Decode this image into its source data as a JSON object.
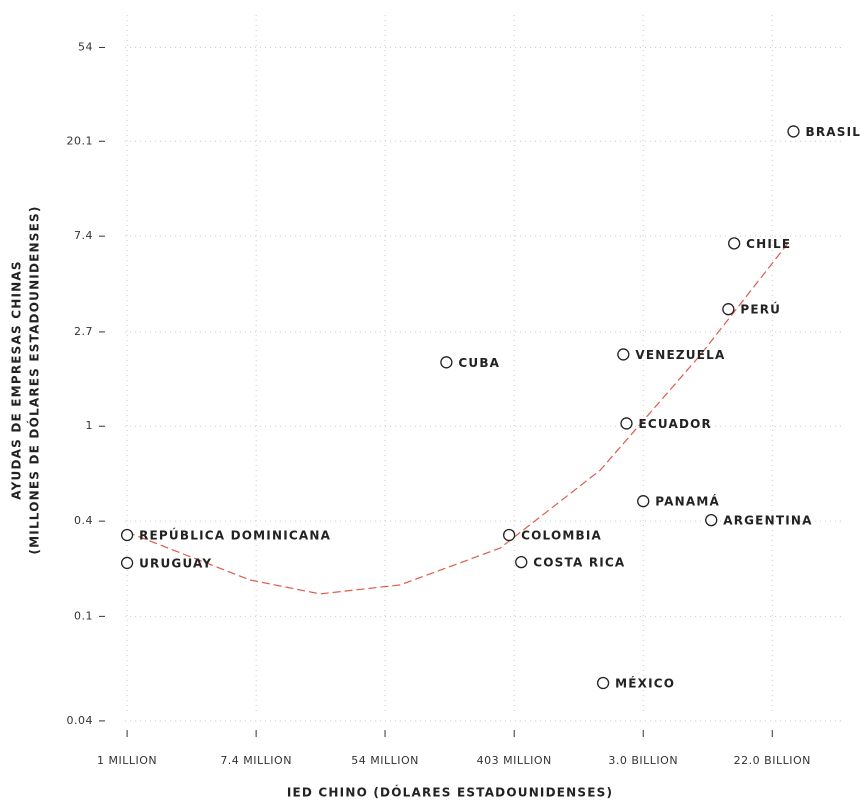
{
  "chart_data": {
    "type": "scatter",
    "x_label": "IED CHINO (DÓLARES ESTADOUNIDENSES)",
    "y_label": [
      "AYUDAS DE EMPRESAS CHINAS",
      "(MILLONES DE DÓLARES ESTADOUNIDENSES)"
    ],
    "x_log": true,
    "y_log": true,
    "grid": true,
    "xlim": [
      710000,
      68000000000
    ],
    "ylim": [
      0.043,
      76
    ],
    "xticks": [
      {
        "value": 1000000,
        "label": "1 MILLION"
      },
      {
        "value": 7389056,
        "label": "7.4 MILLION"
      },
      {
        "value": 54490000,
        "label": "54 MILLION"
      },
      {
        "value": 403428793,
        "label": "403 MILLION"
      },
      {
        "value": 2980957987,
        "label": "3.0 BILLION"
      },
      {
        "value": 22026465795,
        "label": "22.0 BILLION"
      }
    ],
    "yticks": [
      {
        "value": 0.0449,
        "label": "0.04"
      },
      {
        "value": 0.135,
        "label": "0.1"
      },
      {
        "value": 0.368,
        "label": "0.4"
      },
      1,
      2.7,
      7.4,
      20.1,
      54
    ],
    "point_color": "#222222",
    "labels": [
      "BRASIL",
      "CHILE",
      "PERÚ",
      "VENEZUELA",
      "CUBA",
      "ECUADOR",
      "PANAMÁ",
      "ARGENTINA",
      "COLOMBIA",
      "COSTA RICA",
      "REPÚBLICA DOMINICANA",
      "URUGUAY",
      "MÉXICO"
    ],
    "x": [
      30600000000,
      12200000000,
      11150000000,
      2190000000,
      141000000,
      2300000000,
      2980000000,
      8550000000,
      373000000,
      450000000,
      1000000,
      1000000,
      1600000000
    ],
    "y": [
      22.3,
      6.86,
      3.43,
      2.13,
      1.96,
      1.03,
      0.454,
      0.372,
      0.318,
      0.239,
      0.318,
      0.237,
      0.0669
    ],
    "trend": {
      "color": "#e05a4a",
      "x": [
        1000000,
        6730000,
        19900000,
        68900000,
        324000000,
        1530000000,
        7200000000,
        29100000000
      ],
      "y": [
        0.328,
        0.198,
        0.171,
        0.188,
        0.277,
        0.629,
        2.11,
        7.08
      ]
    }
  }
}
